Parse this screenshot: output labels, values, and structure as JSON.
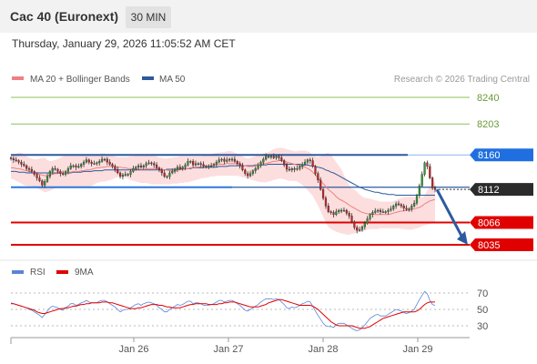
{
  "header": {
    "title": "Cac 40 (Euronext)",
    "timeframe": "30 MIN",
    "datetime": "Thursday, January 29, 2026 11:05:52 AM CET"
  },
  "legend": {
    "ma20": "MA 20 + Bollinger Bands",
    "ma50": "MA 50",
    "rsi": "RSI",
    "rsi_ma": "9MA",
    "credit": "Research © 2026 Trading Central"
  },
  "colors": {
    "ma20": "#f08080",
    "ma50": "#2d5a9e",
    "bands": "#fbd3d3",
    "resistance": "#2d5a9e",
    "support": "#e00000",
    "green_level": "#8cc05a",
    "tag_blue": "#1f6fe0",
    "tag_red": "#e00000",
    "tag_black": "#2b2b2b",
    "rsi": "#5b84d8",
    "rsi_ma": "#e00000",
    "candle_up": "#2e9e2e",
    "candle_down": "#d22020"
  },
  "chart_data": [
    {
      "type": "candlestick",
      "x_ticks": [
        "Jan 26",
        "Jan 27",
        "Jan 28",
        "Jan 29"
      ],
      "levels": [
        {
          "value": 8240,
          "label": "8240",
          "kind": "target"
        },
        {
          "value": 8203,
          "label": "8203",
          "kind": "target"
        },
        {
          "value": 8160,
          "label": "8160",
          "kind": "resistance"
        },
        {
          "value": 8112,
          "label": "8112",
          "kind": "last"
        },
        {
          "value": 8066,
          "label": "8066",
          "kind": "support"
        },
        {
          "value": 8035,
          "label": "8035",
          "kind": "support"
        }
      ],
      "resistance_channel": [
        8160,
        8115
      ],
      "forecast_arrow": {
        "from": 8112,
        "to": 8035
      },
      "close": [
        8155,
        8153,
        8152,
        8150,
        8147,
        8145,
        8141,
        8140,
        8137,
        8133,
        8128,
        8124,
        8118,
        8123,
        8130,
        8137,
        8141,
        8140,
        8137,
        8134,
        8133,
        8137,
        8141,
        8145,
        8145,
        8143,
        8144,
        8147,
        8150,
        8153,
        8150,
        8148,
        8148,
        8149,
        8151,
        8154,
        8154,
        8150,
        8147,
        8144,
        8140,
        8135,
        8130,
        8132,
        8133,
        8133,
        8137,
        8141,
        8143,
        8145,
        8143,
        8145,
        8148,
        8149,
        8148,
        8146,
        8142,
        8139,
        8135,
        8130,
        8130,
        8135,
        8137,
        8140,
        8143,
        8141,
        8143,
        8146,
        8151,
        8151,
        8146,
        8148,
        8148,
        8147,
        8144,
        8144,
        8144,
        8145,
        8147,
        8150,
        8153,
        8154,
        8151,
        8153,
        8154,
        8154,
        8151,
        8148,
        8145,
        8139,
        8134,
        8131,
        8134,
        8138,
        8141,
        8145,
        8150,
        8154,
        8158,
        8158,
        8158,
        8156,
        8158,
        8156,
        8152,
        8146,
        8140,
        8139,
        8141,
        8140,
        8141,
        8144,
        8147,
        8150,
        8153,
        8152,
        8144,
        8134,
        8125,
        8112,
        8100,
        8089,
        8081,
        8080,
        8077,
        8081,
        8083,
        8083,
        8083,
        8079,
        8075,
        8067,
        8059,
        8055,
        8056,
        8060,
        8065,
        8071,
        8077,
        8080,
        8082,
        8083,
        8081,
        8081,
        8081,
        8083,
        8085,
        8089,
        8092,
        8091,
        8089,
        8086,
        8084,
        8085,
        8089,
        8093,
        8104,
        8117,
        8133,
        8149,
        8144,
        8128,
        8114,
        8112
      ],
      "ma20": [
        8142,
        8142,
        8141,
        8141,
        8140,
        8139,
        8138,
        8137,
        8136,
        8135,
        8134,
        8133,
        8132,
        8131,
        8131,
        8132,
        8133,
        8134,
        8134,
        8135,
        8135,
        8135,
        8136,
        8136,
        8137,
        8137,
        8137,
        8138,
        8138,
        8139,
        8139,
        8140,
        8141,
        8142,
        8142,
        8143,
        8143,
        8144,
        8144,
        8144,
        8144,
        8143,
        8143,
        8142,
        8142,
        8141,
        8141,
        8141,
        8141,
        8140,
        8140,
        8140,
        8140,
        8141,
        8141,
        8141,
        8141,
        8140,
        8140,
        8139,
        8139,
        8138,
        8138,
        8138,
        8139,
        8139,
        8140,
        8140,
        8141,
        8142,
        8142,
        8143,
        8143,
        8144,
        8144,
        8145,
        8145,
        8145,
        8146,
        8146,
        8147,
        8147,
        8147,
        8148,
        8148,
        8148,
        8148,
        8148,
        8147,
        8146,
        8145,
        8144,
        8144,
        8144,
        8145,
        8146,
        8147,
        8148,
        8148,
        8149,
        8150,
        8151,
        8151,
        8152,
        8152,
        8151,
        8150,
        8149,
        8148,
        8147,
        8146,
        8145,
        8144,
        8143,
        8141,
        8139,
        8136,
        8132,
        8128,
        8124,
        8120,
        8116,
        8112,
        8109,
        8106,
        8102,
        8099,
        8097,
        8095,
        8093,
        8090,
        8088,
        8086,
        8084,
        8082,
        8080,
        8079,
        8078,
        8078,
        8078,
        8077,
        8077,
        8077,
        8077,
        8077,
        8077,
        8078,
        8079,
        8080,
        8081,
        8082,
        8082,
        8083,
        8083,
        8084,
        8085,
        8086,
        8087,
        8089,
        8092,
        8094,
        8096,
        8097,
        8098
      ],
      "ma50": [
        8137,
        8137,
        8137,
        8136,
        8136,
        8136,
        8135,
        8135,
        8135,
        8135,
        8135,
        8135,
        8135,
        8135,
        8135,
        8135,
        8135,
        8135,
        8135,
        8135,
        8135,
        8135,
        8135,
        8135,
        8136,
        8136,
        8136,
        8136,
        8137,
        8137,
        8137,
        8137,
        8138,
        8138,
        8138,
        8138,
        8139,
        8139,
        8139,
        8139,
        8139,
        8139,
        8139,
        8139,
        8139,
        8139,
        8139,
        8139,
        8139,
        8139,
        8139,
        8139,
        8139,
        8139,
        8139,
        8139,
        8139,
        8139,
        8139,
        8139,
        8140,
        8140,
        8140,
        8140,
        8140,
        8140,
        8141,
        8141,
        8141,
        8141,
        8142,
        8142,
        8142,
        8142,
        8142,
        8143,
        8143,
        8143,
        8143,
        8143,
        8144,
        8144,
        8144,
        8144,
        8145,
        8145,
        8145,
        8145,
        8145,
        8145,
        8145,
        8145,
        8145,
        8145,
        8146,
        8146,
        8146,
        8146,
        8146,
        8147,
        8147,
        8147,
        8147,
        8147,
        8147,
        8147,
        8147,
        8147,
        8147,
        8147,
        8147,
        8147,
        8146,
        8146,
        8146,
        8145,
        8145,
        8144,
        8143,
        8142,
        8141,
        8139,
        8138,
        8136,
        8135,
        8133,
        8131,
        8129,
        8127,
        8125,
        8123,
        8121,
        8119,
        8117,
        8115,
        8114,
        8112,
        8111,
        8110,
        8109,
        8108,
        8108,
        8107,
        8106,
        8106,
        8105,
        8105,
        8105,
        8104,
        8104,
        8104,
        8104,
        8104,
        8104,
        8104,
        8104,
        8104,
        8104,
        8104,
        8104,
        8104,
        8104,
        8104,
        8104
      ],
      "upper_band": [
        8158,
        8160,
        8162,
        8163,
        8163,
        8161,
        8158,
        8156,
        8155,
        8154,
        8154,
        8155,
        8156,
        8156,
        8153,
        8151,
        8152,
        8153,
        8154,
        8156,
        8158,
        8159,
        8160,
        8160,
        8159,
        8159,
        8159,
        8160,
        8161,
        8161,
        8160,
        8159,
        8159,
        8159,
        8161,
        8162,
        8162,
        8161,
        8160,
        8159,
        8158,
        8157,
        8157,
        8157,
        8157,
        8157,
        8158,
        8158,
        8159,
        8159,
        8160,
        8160,
        8161,
        8161,
        8160,
        8159,
        8158,
        8156,
        8156,
        8155,
        8155,
        8156,
        8156,
        8157,
        8157,
        8158,
        8158,
        8158,
        8158,
        8158,
        8158,
        8158,
        8158,
        8158,
        8159,
        8159,
        8160,
        8161,
        8162,
        8163,
        8163,
        8164,
        8164,
        8165,
        8165,
        8165,
        8163,
        8162,
        8160,
        8158,
        8156,
        8155,
        8156,
        8157,
        8158,
        8160,
        8161,
        8162,
        8163,
        8164,
        8166,
        8168,
        8169,
        8170,
        8170,
        8169,
        8168,
        8167,
        8166,
        8165,
        8165,
        8166,
        8166,
        8166,
        8165,
        8163,
        8160,
        8158,
        8157,
        8158,
        8160,
        8162,
        8163,
        8160,
        8155,
        8150,
        8145,
        8140,
        8132,
        8125,
        8118,
        8113,
        8112,
        8109,
        8105,
        8102,
        8100,
        8100,
        8099,
        8098,
        8097,
        8096,
        8095,
        8095,
        8095,
        8095,
        8095,
        8096,
        8097,
        8099,
        8100,
        8101,
        8102,
        8102,
        8102,
        8101,
        8101,
        8100,
        8101,
        8104,
        8110,
        8116,
        8121,
        8123
      ],
      "lower_band": [
        8127,
        8126,
        8124,
        8122,
        8120,
        8118,
        8117,
        8117,
        8116,
        8115,
        8114,
        8112,
        8110,
        8108,
        8109,
        8110,
        8112,
        8114,
        8115,
        8116,
        8116,
        8116,
        8116,
        8115,
        8115,
        8114,
        8114,
        8114,
        8115,
        8115,
        8116,
        8117,
        8119,
        8121,
        8122,
        8123,
        8123,
        8124,
        8125,
        8126,
        8128,
        8129,
        8130,
        8129,
        8128,
        8127,
        8125,
        8124,
        8123,
        8122,
        8121,
        8121,
        8121,
        8120,
        8119,
        8119,
        8119,
        8119,
        8119,
        8119,
        8119,
        8119,
        8120,
        8120,
        8120,
        8121,
        8121,
        8122,
        8122,
        8123,
        8124,
        8125,
        8126,
        8127,
        8128,
        8128,
        8129,
        8130,
        8130,
        8131,
        8131,
        8131,
        8131,
        8131,
        8131,
        8131,
        8131,
        8131,
        8130,
        8129,
        8128,
        8127,
        8126,
        8125,
        8124,
        8123,
        8122,
        8122,
        8122,
        8123,
        8124,
        8125,
        8126,
        8127,
        8127,
        8126,
        8125,
        8124,
        8124,
        8124,
        8123,
        8121,
        8118,
        8115,
        8111,
        8107,
        8103,
        8096,
        8090,
        8082,
        8074,
        8066,
        8060,
        8057,
        8055,
        8053,
        8052,
        8051,
        8050,
        8049,
        8049,
        8050,
        8051,
        8052,
        8053,
        8054,
        8055,
        8056,
        8057,
        8057,
        8057,
        8057,
        8058,
        8058,
        8058,
        8058,
        8058,
        8058,
        8058,
        8058,
        8057,
        8057,
        8056,
        8056,
        8056,
        8057,
        8058,
        8059,
        8061,
        8062,
        8063,
        8064,
        8065,
        8067
      ]
    },
    {
      "type": "line",
      "name": "RSI",
      "y_ticks": [
        70,
        50,
        30
      ],
      "ylim": [
        20,
        80
      ],
      "values": [
        58,
        57,
        56,
        55,
        54,
        53,
        52,
        50,
        49,
        47,
        45,
        43,
        40,
        44,
        48,
        52,
        54,
        53,
        52,
        50,
        49,
        52,
        54,
        57,
        57,
        55,
        56,
        58,
        59,
        61,
        59,
        58,
        58,
        58,
        60,
        61,
        61,
        59,
        57,
        55,
        53,
        50,
        47,
        49,
        50,
        50,
        52,
        54,
        56,
        57,
        55,
        57,
        58,
        59,
        58,
        57,
        55,
        52,
        50,
        47,
        47,
        50,
        52,
        54,
        56,
        55,
        56,
        58,
        60,
        60,
        57,
        58,
        58,
        57,
        55,
        55,
        55,
        56,
        57,
        59,
        61,
        61,
        59,
        60,
        61,
        61,
        59,
        57,
        55,
        52,
        49,
        48,
        50,
        52,
        54,
        56,
        59,
        61,
        63,
        63,
        63,
        62,
        63,
        62,
        59,
        56,
        52,
        51,
        53,
        52,
        53,
        55,
        57,
        58,
        60,
        59,
        54,
        48,
        43,
        38,
        33,
        30,
        29,
        29,
        28,
        31,
        33,
        33,
        33,
        31,
        29,
        27,
        25,
        24,
        25,
        28,
        31,
        35,
        39,
        41,
        43,
        44,
        42,
        42,
        42,
        44,
        46,
        48,
        50,
        49,
        48,
        46,
        45,
        46,
        48,
        50,
        56,
        62,
        67,
        72,
        69,
        61,
        56,
        55
      ],
      "ma": [
        57,
        57,
        56,
        55,
        54,
        53,
        52,
        51,
        50,
        49,
        47,
        46,
        45,
        45,
        46,
        47,
        48,
        49,
        50,
        51,
        51,
        52,
        52,
        53,
        54,
        54,
        55,
        56,
        56,
        57,
        57,
        58,
        58,
        58,
        58,
        59,
        59,
        59,
        58,
        58,
        57,
        56,
        55,
        54,
        53,
        52,
        51,
        51,
        51,
        52,
        52,
        53,
        54,
        55,
        56,
        56,
        56,
        55,
        55,
        54,
        53,
        53,
        52,
        52,
        52,
        52,
        53,
        54,
        55,
        56,
        56,
        57,
        57,
        57,
        57,
        57,
        56,
        56,
        56,
        56,
        57,
        57,
        58,
        58,
        59,
        59,
        59,
        58,
        57,
        56,
        55,
        54,
        53,
        53,
        53,
        53,
        54,
        55,
        56,
        58,
        59,
        60,
        61,
        62,
        62,
        61,
        60,
        59,
        58,
        57,
        56,
        55,
        55,
        55,
        55,
        55,
        54,
        52,
        50,
        47,
        44,
        41,
        38,
        35,
        33,
        31,
        30,
        30,
        30,
        30,
        30,
        30,
        29,
        28,
        27,
        27,
        27,
        28,
        29,
        31,
        33,
        35,
        37,
        39,
        40,
        41,
        42,
        43,
        44,
        45,
        46,
        47,
        47,
        47,
        47,
        47,
        48,
        50,
        53,
        56,
        58,
        59,
        59,
        59
      ]
    }
  ]
}
